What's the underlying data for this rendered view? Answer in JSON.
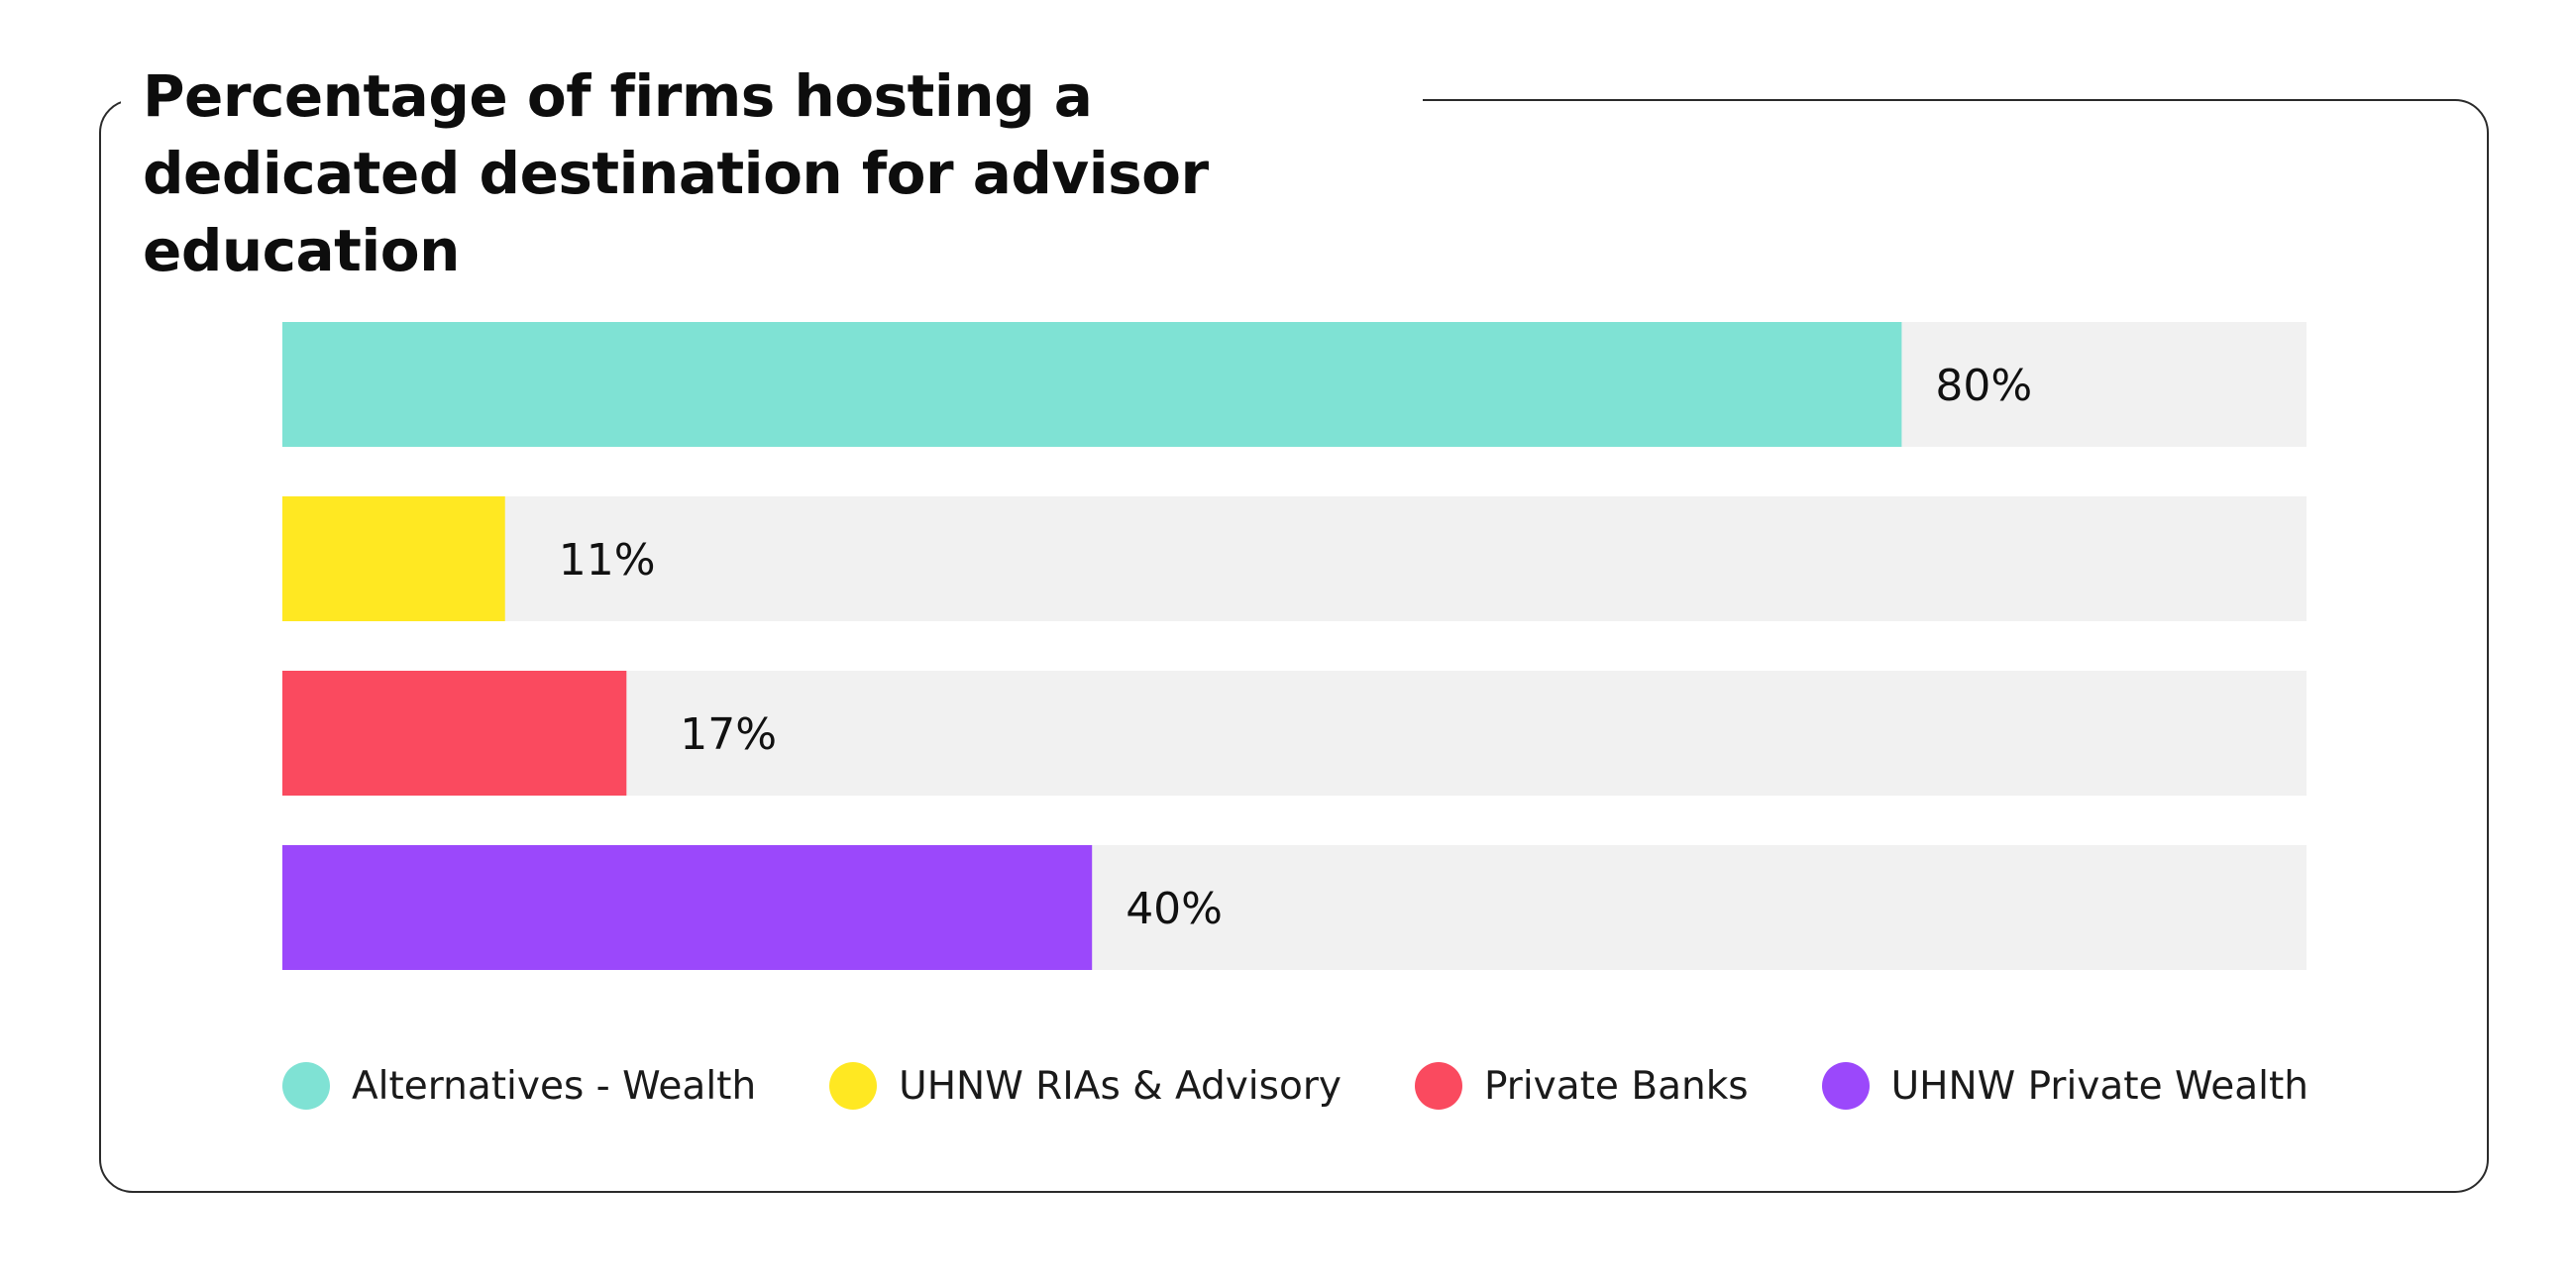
{
  "chart_data": {
    "type": "bar",
    "orientation": "horizontal",
    "title": "Percentage of firms hosting a dedicated destination for advisor education",
    "categories": [
      "Alternatives - Wealth",
      "UHNW RIAs & Advisory",
      "Private Banks",
      "UHNW Private Wealth"
    ],
    "values": [
      80,
      11,
      17,
      40
    ],
    "value_labels": [
      "80%",
      "11%",
      "17%",
      "40%"
    ],
    "xlim": [
      0,
      100
    ],
    "grid": false,
    "legend_placement": "bottom",
    "colors": [
      "#7fe2d4",
      "#ffe822",
      "#fa4a5f",
      "#9b48fb"
    ],
    "track_color": "#f1f1f1"
  }
}
